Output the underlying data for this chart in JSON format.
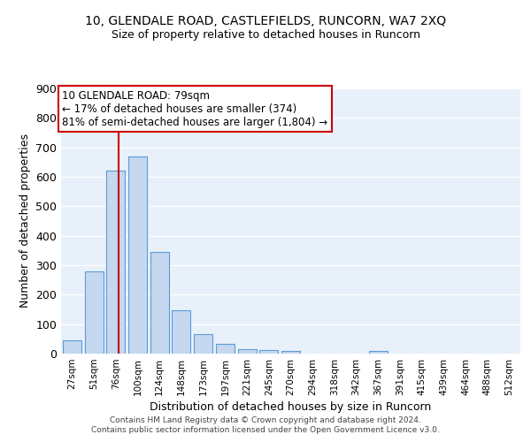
{
  "title1": "10, GLENDALE ROAD, CASTLEFIELDS, RUNCORN, WA7 2XQ",
  "title2": "Size of property relative to detached houses in Runcorn",
  "xlabel": "Distribution of detached houses by size in Runcorn",
  "ylabel": "Number of detached properties",
  "categories": [
    "27sqm",
    "51sqm",
    "76sqm",
    "100sqm",
    "124sqm",
    "148sqm",
    "173sqm",
    "197sqm",
    "221sqm",
    "245sqm",
    "270sqm",
    "294sqm",
    "318sqm",
    "342sqm",
    "367sqm",
    "391sqm",
    "415sqm",
    "439sqm",
    "464sqm",
    "488sqm",
    "512sqm"
  ],
  "values": [
    45,
    280,
    620,
    670,
    345,
    148,
    65,
    32,
    15,
    12,
    10,
    0,
    0,
    0,
    10,
    0,
    0,
    0,
    0,
    0,
    0
  ],
  "bar_color": "#c5d8f0",
  "bar_edge_color": "#5b9bd5",
  "annotation_line1": "10 GLENDALE ROAD: 79sqm",
  "annotation_line2": "← 17% of detached houses are smaller (374)",
  "annotation_line3": "81% of semi-detached houses are larger (1,804) →",
  "annotation_box_color": "#ffffff",
  "annotation_box_edge": "#cc0000",
  "vline_color": "#cc0000",
  "ylim": [
    0,
    900
  ],
  "yticks": [
    0,
    100,
    200,
    300,
    400,
    500,
    600,
    700,
    800,
    900
  ],
  "background_color": "#e8f0fa",
  "grid_color": "#ffffff",
  "footer1": "Contains HM Land Registry data © Crown copyright and database right 2024.",
  "footer2": "Contains public sector information licensed under the Open Government Licence v3.0."
}
